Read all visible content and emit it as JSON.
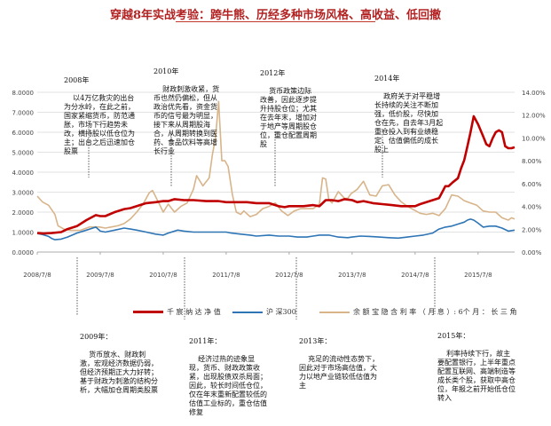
{
  "title": "穿越8年实战考验：跨牛熊、历经多种市场风格、高收益、低回撤",
  "chart_data": {
    "type": "line",
    "x_ticks": [
      "2008/7/8",
      "2009/7/8",
      "2010/7/8",
      "2011/7/8",
      "2012/7/8",
      "2013/7/8",
      "2014/7/8",
      "2015/7/8"
    ],
    "y_left": {
      "ticks": [
        "0.0000",
        "1.0000",
        "2.0000",
        "3.0000",
        "4.0000",
        "5.0000",
        "6.0000",
        "7.0000",
        "8.0000"
      ],
      "ylim": [
        0,
        8
      ]
    },
    "y_right": {
      "ticks": [
        "0.00%",
        "2.00%",
        "4.00%",
        "6.00%",
        "8.00%",
        "10.00%",
        "12.00%",
        "14.00%"
      ],
      "ylim": [
        0,
        14
      ]
    },
    "series": [
      {
        "name": "千 宸 纳 达 净 值",
        "axis": "left",
        "color": "#c00000",
        "x": [
          2008.52,
          2008.62,
          2008.75,
          2008.9,
          2009.0,
          2009.15,
          2009.3,
          2009.45,
          2009.52,
          2009.6,
          2009.75,
          2009.9,
          2010.0,
          2010.1,
          2010.25,
          2010.4,
          2010.52,
          2010.6,
          2010.7,
          2010.85,
          2011.0,
          2011.2,
          2011.4,
          2011.52,
          2011.6,
          2011.7,
          2011.85,
          2012.0,
          2012.2,
          2012.35,
          2012.45,
          2012.52,
          2012.6,
          2012.75,
          2012.9,
          2013.0,
          2013.1,
          2013.2,
          2013.3,
          2013.4,
          2013.52,
          2013.6,
          2013.7,
          2013.85,
          2014.0,
          2014.15,
          2014.3,
          2014.45,
          2014.52,
          2014.6,
          2014.7,
          2014.8,
          2014.9,
          2014.95,
          2015.0,
          2015.05,
          2015.12,
          2015.2,
          2015.25,
          2015.3,
          2015.35,
          2015.4,
          2015.45,
          2015.52,
          2015.6,
          2015.65,
          2015.7,
          2015.75,
          2015.8,
          2015.85,
          2015.9,
          2015.95,
          2016.0,
          2016.05,
          2016.1
        ],
        "values": [
          0.95,
          0.93,
          0.95,
          1.0,
          1.15,
          1.3,
          1.6,
          1.85,
          1.8,
          1.8,
          2.0,
          2.15,
          2.2,
          2.3,
          2.45,
          2.5,
          2.55,
          2.55,
          2.65,
          2.6,
          2.6,
          2.55,
          2.55,
          2.5,
          2.5,
          2.5,
          2.5,
          2.45,
          2.45,
          2.3,
          2.25,
          2.3,
          2.3,
          2.3,
          2.35,
          2.3,
          2.6,
          2.6,
          2.55,
          2.65,
          2.6,
          2.5,
          2.55,
          2.45,
          2.4,
          2.35,
          2.3,
          2.3,
          2.3,
          2.4,
          2.5,
          2.6,
          2.7,
          3.0,
          3.3,
          3.3,
          3.5,
          3.7,
          4.2,
          4.6,
          5.3,
          6.0,
          6.8,
          6.4,
          5.8,
          5.4,
          5.3,
          5.7,
          6.0,
          6.1,
          6.0,
          5.3,
          5.2,
          5.2,
          5.25
        ]
      },
      {
        "name": "沪 深300",
        "axis": "left",
        "color": "#2e75b6",
        "x": [
          2008.52,
          2008.6,
          2008.7,
          2008.75,
          2008.8,
          2008.9,
          2009.0,
          2009.15,
          2009.3,
          2009.45,
          2009.52,
          2009.6,
          2009.75,
          2009.9,
          2010.0,
          2010.1,
          2010.25,
          2010.4,
          2010.52,
          2010.6,
          2010.75,
          2010.85,
          2011.0,
          2011.2,
          2011.4,
          2011.52,
          2011.6,
          2011.75,
          2011.9,
          2012.0,
          2012.2,
          2012.35,
          2012.52,
          2012.65,
          2012.8,
          2012.9,
          2013.0,
          2013.15,
          2013.3,
          2013.45,
          2013.52,
          2013.65,
          2013.8,
          2013.95,
          2014.1,
          2014.25,
          2014.4,
          2014.52,
          2014.65,
          2014.8,
          2014.9,
          2015.0,
          2015.1,
          2015.2,
          2015.3,
          2015.35,
          2015.4,
          2015.45,
          2015.52,
          2015.6,
          2015.7,
          2015.8,
          2015.9,
          2016.0,
          2016.1
        ],
        "values": [
          0.93,
          0.88,
          0.78,
          0.68,
          0.62,
          0.65,
          0.75,
          0.95,
          1.1,
          1.25,
          1.05,
          1.0,
          1.1,
          1.2,
          1.15,
          1.1,
          1.0,
          0.9,
          0.85,
          0.95,
          1.1,
          1.05,
          1.0,
          1.0,
          1.0,
          1.0,
          0.95,
          0.9,
          0.85,
          0.8,
          0.85,
          0.8,
          0.8,
          0.75,
          0.75,
          0.8,
          0.85,
          0.85,
          0.75,
          0.72,
          0.75,
          0.8,
          0.78,
          0.75,
          0.72,
          0.7,
          0.75,
          0.8,
          0.85,
          0.95,
          1.15,
          1.25,
          1.3,
          1.4,
          1.5,
          1.6,
          1.65,
          1.6,
          1.45,
          1.25,
          1.3,
          1.3,
          1.2,
          1.05,
          1.1
        ]
      },
      {
        "name": "余 额 宝 隐 含 利 率 （ 月 息 ）: 6个 月 ： 长 三 角",
        "axis": "right",
        "color": "#d8b48a",
        "x": [
          2008.52,
          2008.6,
          2008.7,
          2008.8,
          2008.85,
          2008.95,
          2009.05,
          2009.2,
          2009.35,
          2009.5,
          2009.6,
          2009.7,
          2009.8,
          2009.9,
          2010.0,
          2010.1,
          2010.2,
          2010.3,
          2010.35,
          2010.45,
          2010.52,
          2010.6,
          2010.7,
          2010.8,
          2010.9,
          2011.0,
          2011.05,
          2011.15,
          2011.25,
          2011.3,
          2011.35,
          2011.4,
          2011.45,
          2011.5,
          2011.55,
          2011.62,
          2011.68,
          2011.75,
          2011.8,
          2011.9,
          2012.0,
          2012.1,
          2012.2,
          2012.3,
          2012.4,
          2012.5,
          2012.6,
          2012.7,
          2012.8,
          2012.9,
          2013.0,
          2013.05,
          2013.1,
          2013.15,
          2013.2,
          2013.3,
          2013.4,
          2013.45,
          2013.5,
          2013.6,
          2013.7,
          2013.8,
          2013.9,
          2014.0,
          2014.1,
          2014.2,
          2014.3,
          2014.4,
          2014.5,
          2014.6,
          2014.7,
          2014.8,
          2014.9,
          2015.0,
          2015.1,
          2015.2,
          2015.3,
          2015.4,
          2015.5,
          2015.6,
          2015.7,
          2015.8,
          2015.9,
          2016.0,
          2016.05,
          2016.1
        ],
        "values": [
          4.9,
          4.4,
          4.1,
          3.3,
          2.3,
          2.0,
          1.9,
          1.9,
          2.2,
          2.2,
          2.1,
          2.2,
          2.3,
          2.5,
          2.9,
          3.5,
          4.2,
          5.2,
          5.4,
          4.3,
          3.5,
          4.2,
          3.5,
          4.0,
          4.3,
          5.5,
          6.7,
          5.8,
          6.5,
          8.5,
          10.0,
          13.2,
          8.0,
          8.0,
          7.5,
          5.0,
          3.5,
          3.3,
          3.6,
          3.1,
          3.3,
          3.8,
          4.0,
          4.3,
          3.6,
          3.2,
          3.6,
          3.8,
          3.8,
          3.8,
          4.2,
          6.5,
          6.4,
          4.6,
          4.3,
          5.3,
          4.7,
          4.7,
          5.1,
          5.5,
          6.2,
          5.0,
          4.9,
          5.8,
          5.9,
          5.0,
          4.4,
          4.0,
          3.7,
          3.4,
          3.3,
          3.4,
          3.2,
          3.8,
          5.0,
          4.9,
          4.5,
          4.3,
          4.1,
          3.6,
          3.5,
          3.5,
          3.0,
          2.8,
          3.0,
          2.9
        ]
      }
    ]
  },
  "notes": [
    {
      "year": "2008年",
      "text": "以4万亿救灾的出台为分水岭，在此之前，国家紧缩货币，防范通胀，市场下行趋势未改，横持股以低仓位为主；出台之后迅速加仓股票"
    },
    {
      "year": "2010年",
      "text": "财政刺激收紧，货币也然仍偏松，但从政治优先看，资金货币的信号最为明显，接下来从周期股海合，从周期转换到医药、食品饮料等高增长行业"
    },
    {
      "year": "2012年",
      "text": "货币政策边际改善，因此逐步提升持股仓位；尤其在去年末，增加对于地产等周期股仓位，重仓配置周期股"
    },
    {
      "year": "2014年",
      "text": "政府关于对平稳增长持续的关注不断加强，低价股，尽快加仓在先，自去年3月起重仓投入到有业绩稳定、估值偏低的成长股上"
    },
    {
      "year": "2009年：",
      "text": "货币放水、财政刺激，宏观经济数据仍弱，但经济预期正大力好转；基于财政为刺激的结构分析，大幅加仓周期类股票"
    },
    {
      "year": "2011年：",
      "text": "经济过热的迹象显现，货币、财政政策收紧，出现股债双杀局面；因此，较长时间低仓位，仅在年末重新配置较低的估值工业标的，重仓估值修复"
    },
    {
      "year": "2013年：",
      "text": "充足的流动性态势下，因此对于市场高估值，大力以地产业链较低估值为主"
    },
    {
      "year": "2015年：",
      "text": "利率持续下行，故主要配置银行，上半年重点配置互联网、高端制造等成长类个股，获取中高仓位，年报之前开始低仓位转入"
    }
  ],
  "legend": {
    "items": [
      {
        "name": "千 宸 纳 达 净 值",
        "color": "#c00000"
      },
      {
        "name": "沪 深300",
        "color": "#2e75b6"
      },
      {
        "name": "余 额 宝 隐 含 利 率 （ 月 息 ）: 6个 月 ： 长 三 角",
        "color": "#d8b48a"
      }
    ]
  }
}
